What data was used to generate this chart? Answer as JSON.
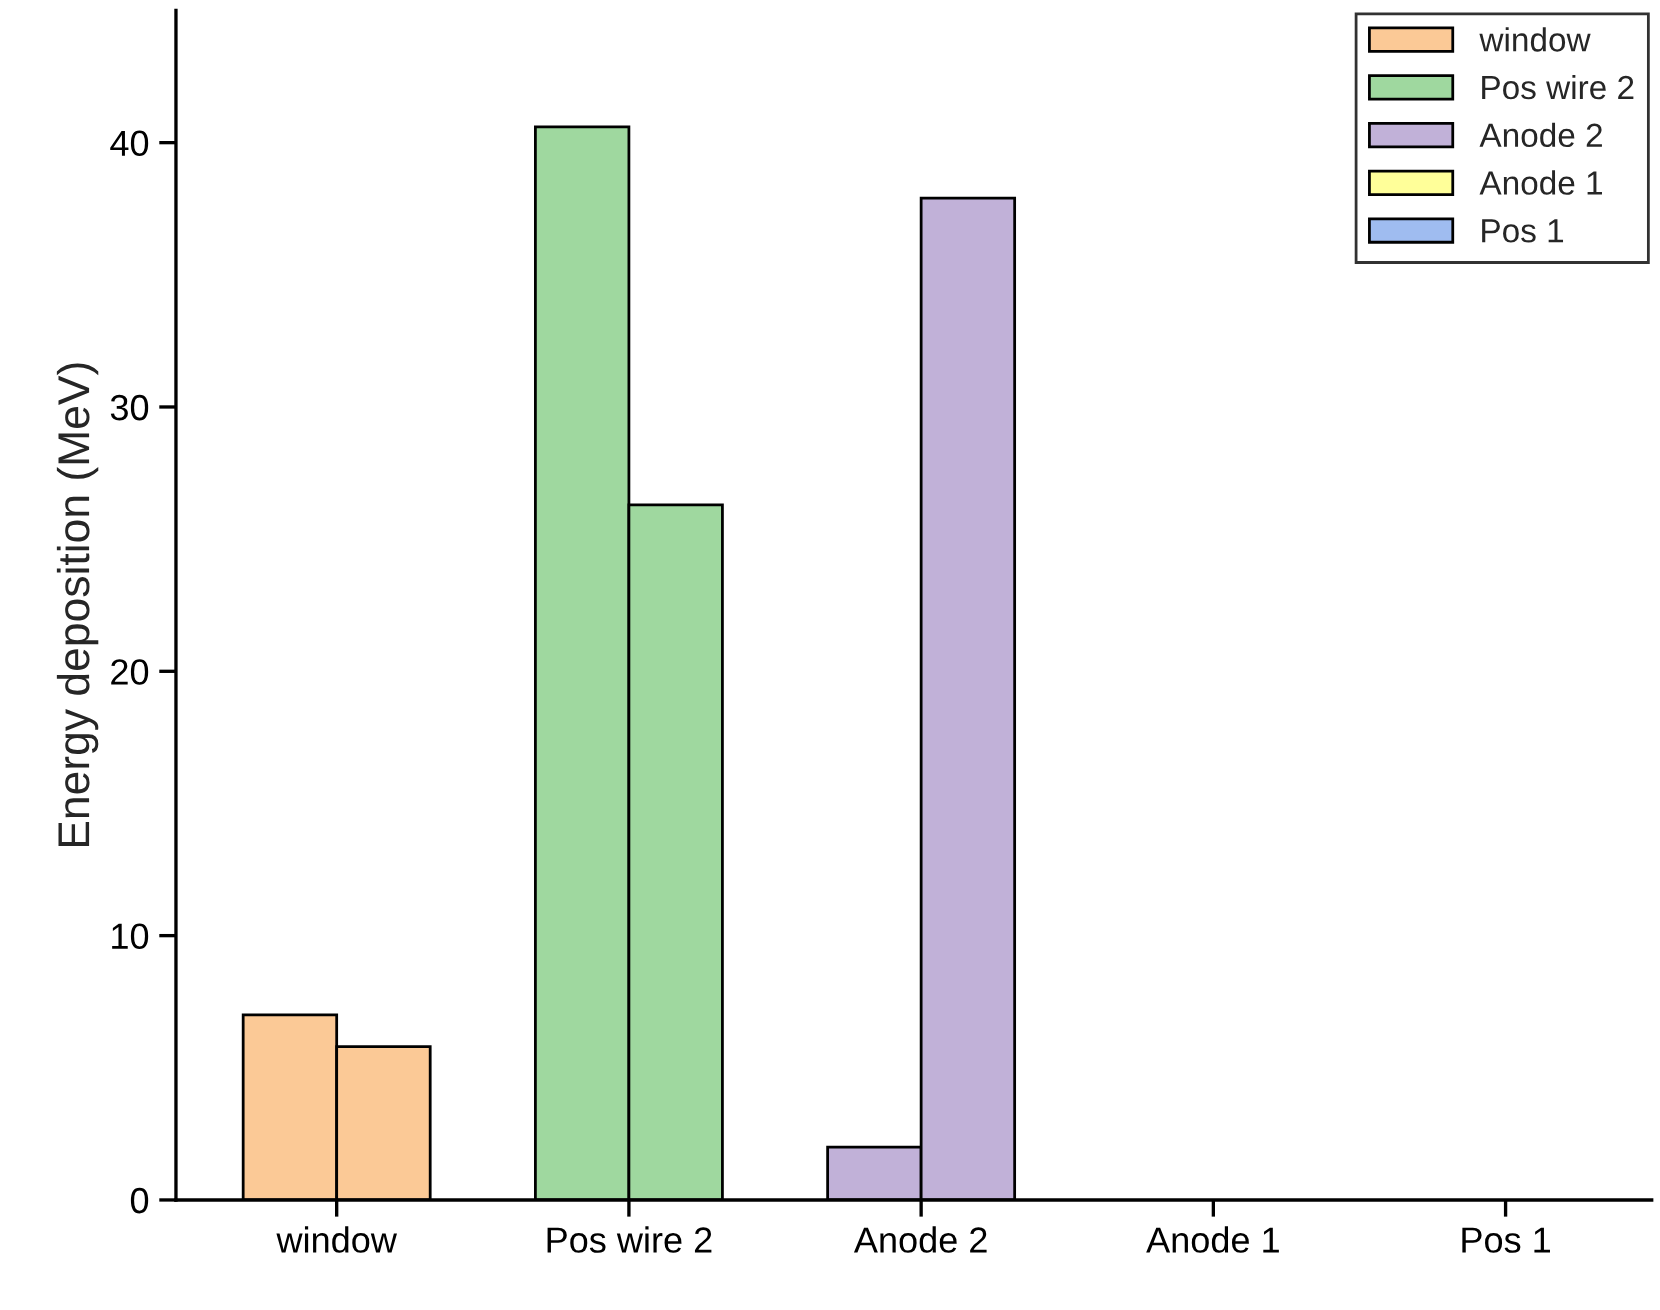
{
  "chart_data": {
    "type": "bar",
    "ylabel": "Energy deposition (MeV)",
    "categories": [
      "window",
      "Pos wire 2",
      "Anode 2",
      "Anode 1",
      "Pos 1"
    ],
    "series": [
      {
        "name": "window",
        "color": "#fbc996",
        "values": [
          7.0,
          null,
          null,
          null,
          null
        ]
      },
      {
        "color": "#fbc996",
        "values": [
          5.8,
          null,
          null,
          null,
          null
        ]
      },
      {
        "name": "Pos wire 2",
        "color": "#9fd89f",
        "values": [
          null,
          40.6,
          null,
          null,
          null
        ]
      },
      {
        "color": "#9fd89f",
        "values": [
          null,
          26.3,
          null,
          null,
          null
        ]
      },
      {
        "name": "Anode 2",
        "color": "#c1b1d8",
        "values": [
          null,
          null,
          2.0,
          null,
          null
        ]
      },
      {
        "color": "#c1b1d8",
        "values": [
          null,
          null,
          37.9,
          null,
          null
        ]
      },
      {
        "name": "Anode 1",
        "color": "#ffff99",
        "values": [
          null,
          null,
          null,
          0,
          null
        ]
      },
      {
        "color": "#ffff99",
        "values": [
          null,
          null,
          null,
          0,
          null
        ]
      },
      {
        "name": "Pos 1",
        "color": "#9fbcf0",
        "values": [
          null,
          null,
          null,
          null,
          0
        ]
      },
      {
        "color": "#9fbcf0",
        "values": [
          null,
          null,
          null,
          null,
          0
        ]
      }
    ],
    "ylim": [
      0,
      45
    ],
    "yticks": [
      0,
      10,
      20,
      30,
      40
    ],
    "grid": false,
    "legend": "top right"
  }
}
